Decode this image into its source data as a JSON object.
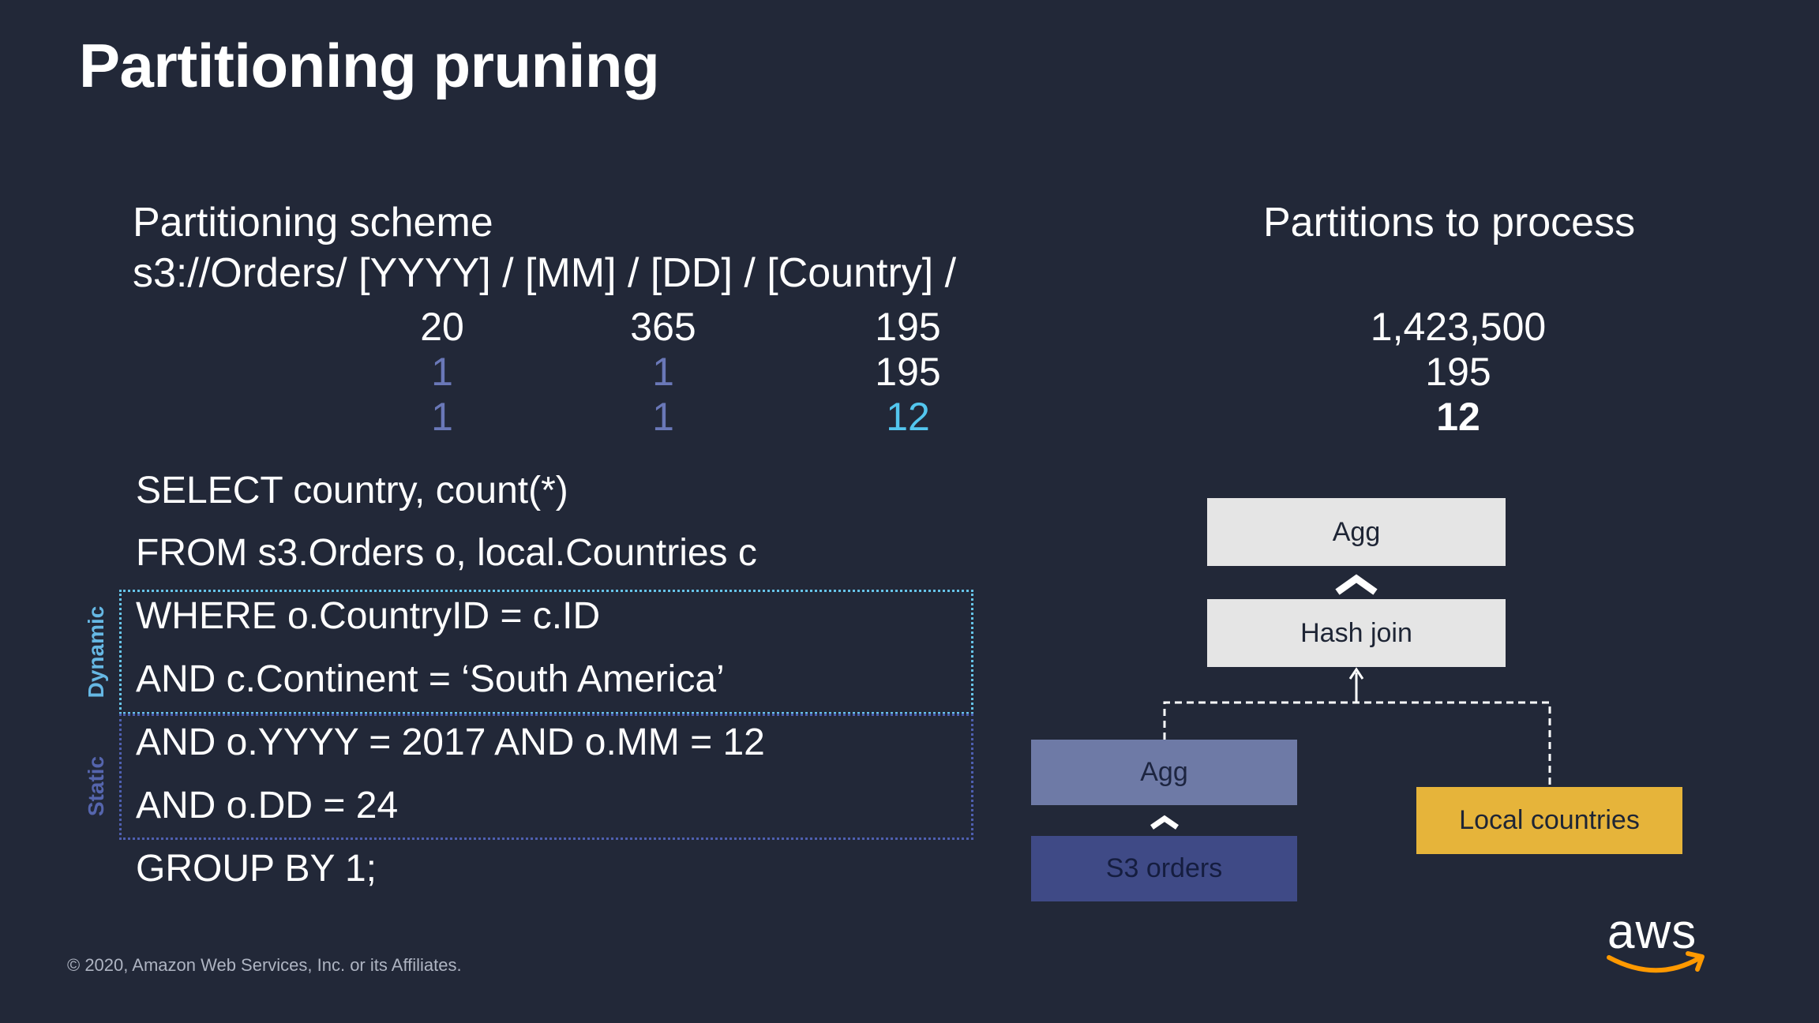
{
  "title": "Partitioning pruning",
  "scheme": {
    "label": "Partitioning scheme",
    "path": "s3://Orders/ [YYYY] / [MM] / [DD] / [Country] /"
  },
  "partitions_label": "Partitions to process",
  "counts": {
    "rows": [
      {
        "yyyy": "20",
        "mm": "365",
        "country": "195",
        "total": "1,423,500"
      },
      {
        "yyyy": "1",
        "mm": "1",
        "country": "195",
        "total": "195"
      },
      {
        "yyyy": "1",
        "mm": "1",
        "country": "12",
        "total": "12"
      }
    ]
  },
  "sql": {
    "lines": [
      "SELECT country, count(*)",
      "FROM s3.Orders o, local.Countries c",
      "WHERE o.CountryID = c.ID",
      "AND c.Continent = ‘South America’",
      "AND o.YYYY = 2017 AND o.MM = 12",
      "AND o.DD = 24",
      "GROUP BY 1;"
    ],
    "dynamic_label": "Dynamic",
    "static_label": "Static"
  },
  "plan": {
    "agg_top": "Agg",
    "hash_join": "Hash join",
    "agg_left": "Agg",
    "s3_orders": "S3 orders",
    "local_countries": "Local countries"
  },
  "colors": {
    "background": "#222838",
    "cyan": "#53c6ee",
    "muted_blue": "#6a78b8",
    "gold": "#e6b43a",
    "aws_orange": "#f90"
  },
  "footer": "© 2020, Amazon Web Services, Inc. or its Affiliates.",
  "logo": {
    "text": "aws"
  }
}
